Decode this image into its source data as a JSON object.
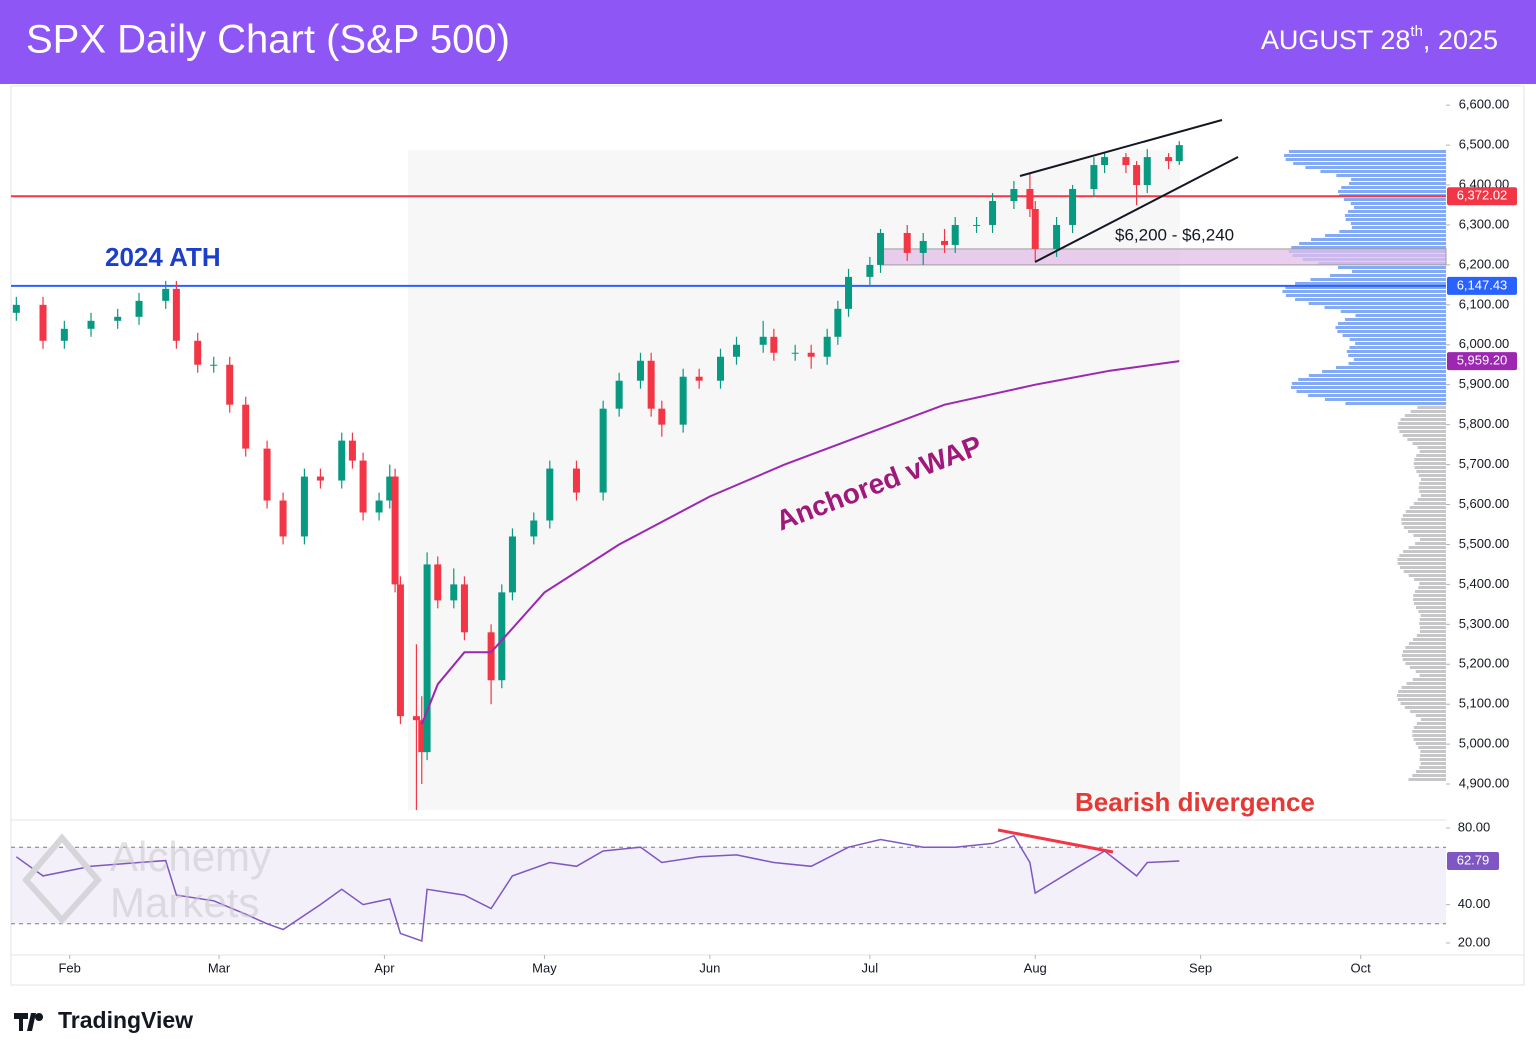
{
  "header": {
    "title": "SPX Daily Chart (S&P 500)",
    "date": {
      "main": "AUGUST 28",
      "sup": "th",
      "tail": ", 2025"
    }
  },
  "watermark": [
    "Alchemy",
    "Markets"
  ],
  "footer": {
    "brand": "TradingView"
  },
  "chart_data": {
    "type": "candlestick",
    "xlim": [
      21,
      290
    ],
    "xticks": [
      {
        "value": 32,
        "label": "Feb"
      },
      {
        "value": 60,
        "label": "Mar"
      },
      {
        "value": 91,
        "label": "Apr"
      },
      {
        "value": 121,
        "label": "May"
      },
      {
        "value": 152,
        "label": "Jun"
      },
      {
        "value": 182,
        "label": "Jul"
      },
      {
        "value": 213,
        "label": "Aug"
      },
      {
        "value": 244,
        "label": "Sep"
      },
      {
        "value": 274,
        "label": "Oct"
      }
    ],
    "ylim": [
      4810,
      6648
    ],
    "yticks": [
      {
        "value": 4900,
        "label": "4,900.00"
      },
      {
        "value": 5000,
        "label": "5,000.00"
      },
      {
        "value": 5100,
        "label": "5,100.00"
      },
      {
        "value": 5200,
        "label": "5,200.00"
      },
      {
        "value": 5300,
        "label": "5,300.00"
      },
      {
        "value": 5400,
        "label": "5,400.00"
      },
      {
        "value": 5500,
        "label": "5,500.00"
      },
      {
        "value": 5600,
        "label": "5,600.00"
      },
      {
        "value": 5700,
        "label": "5,700.00"
      },
      {
        "value": 5800,
        "label": "5,800.00"
      },
      {
        "value": 5900,
        "label": "5,900.00"
      },
      {
        "value": 6000,
        "label": "6,000.00"
      },
      {
        "value": 6100,
        "label": "6,100.00"
      },
      {
        "value": 6200,
        "label": "6,200.00"
      },
      {
        "value": 6300,
        "label": "6,300.00"
      },
      {
        "value": 6400,
        "label": "6,400.00"
      },
      {
        "value": 6500,
        "label": "6,500.00"
      },
      {
        "value": 6600,
        "label": "6,600.00"
      }
    ],
    "up_color": "#089981",
    "down_color": "#f23645",
    "candles": {
      "x": [
        22,
        27,
        31,
        36,
        41,
        45,
        50,
        52,
        56,
        59,
        62,
        65,
        69,
        72,
        76,
        79,
        83,
        85,
        87,
        90,
        92,
        93,
        94,
        97,
        98,
        99,
        101,
        104,
        106,
        111,
        113,
        115,
        119,
        122,
        127,
        132,
        135,
        139,
        141,
        143,
        147,
        150,
        154,
        157,
        162,
        164,
        168,
        171,
        174,
        176,
        178,
        182,
        184,
        189,
        192,
        196,
        198,
        202,
        205,
        209,
        212,
        213,
        217,
        220,
        224,
        226,
        230,
        232,
        234,
        238,
        240
      ],
      "open": [
        6080,
        6100,
        6010,
        6040,
        6060,
        6070,
        6110,
        6140,
        6010,
        5950,
        5950,
        5850,
        5740,
        5610,
        5520,
        5670,
        5660,
        5760,
        5710,
        5580,
        5610,
        5670,
        5400,
        5070,
        5060,
        4980,
        5450,
        5360,
        5400,
        5280,
        5160,
        5380,
        5520,
        5560,
        5690,
        5630,
        5840,
        5910,
        5960,
        5840,
        5800,
        5920,
        5910,
        5970,
        6000,
        6020,
        5980,
        5980,
        5970,
        6020,
        6090,
        6170,
        6200,
        6280,
        6230,
        6260,
        6250,
        6300,
        6300,
        6360,
        6390,
        6340,
        6240,
        6300,
        6390,
        6450,
        6470,
        6450,
        6400,
        6470,
        6460
      ],
      "high": [
        6120,
        6120,
        6060,
        6080,
        6090,
        6130,
        6160,
        6160,
        6030,
        5970,
        5970,
        5870,
        5760,
        5630,
        5690,
        5690,
        5780,
        5780,
        5730,
        5630,
        5700,
        5690,
        5420,
        5250,
        5120,
        5480,
        5470,
        5440,
        5420,
        5300,
        5400,
        5540,
        5580,
        5710,
        5710,
        5860,
        5930,
        5980,
        5980,
        5860,
        5940,
        5940,
        5990,
        6020,
        6060,
        6040,
        6000,
        6000,
        6040,
        6110,
        6190,
        6220,
        6290,
        6300,
        6280,
        6290,
        6320,
        6320,
        6380,
        6410,
        6430,
        6360,
        6320,
        6400,
        6470,
        6480,
        6480,
        6460,
        6490,
        6480,
        6510
      ],
      "low": [
        6060,
        5990,
        5990,
        6020,
        6040,
        6050,
        6090,
        5990,
        5930,
        5930,
        5830,
        5720,
        5590,
        5500,
        5500,
        5640,
        5640,
        5690,
        5560,
        5560,
        5590,
        5380,
        5050,
        4835,
        4900,
        4960,
        5340,
        5340,
        5260,
        5100,
        5140,
        5360,
        5500,
        5540,
        5610,
        5610,
        5820,
        5890,
        5820,
        5770,
        5780,
        5890,
        5890,
        5950,
        5980,
        5960,
        5960,
        5940,
        5950,
        6000,
        6070,
        6150,
        6180,
        6210,
        6200,
        6230,
        6230,
        6280,
        6280,
        6340,
        6320,
        6210,
        6220,
        6280,
        6370,
        6430,
        6430,
        6350,
        6380,
        6440,
        6450
      ],
      "close": [
        6100,
        6010,
        6040,
        6060,
        6070,
        6110,
        6140,
        6010,
        5950,
        5950,
        5850,
        5740,
        5610,
        5520,
        5670,
        5660,
        5760,
        5710,
        5580,
        5610,
        5670,
        5400,
        5070,
        5060,
        4980,
        5450,
        5360,
        5400,
        5280,
        5160,
        5380,
        5520,
        5560,
        5690,
        5630,
        5840,
        5910,
        5960,
        5840,
        5800,
        5920,
        5910,
        5970,
        6000,
        6020,
        5980,
        5980,
        5970,
        6020,
        6090,
        6170,
        6200,
        6280,
        6230,
        6260,
        6250,
        6300,
        6300,
        6360,
        6390,
        6340,
        6240,
        6300,
        6390,
        6450,
        6470,
        6450,
        6400,
        6470,
        6460,
        6500
      ]
    },
    "vwap": {
      "name": "Anchored vWAP",
      "color": "#9c27b0",
      "x": [
        98,
        101,
        106,
        111,
        121,
        135,
        152,
        166,
        182,
        196,
        213,
        227,
        240
      ],
      "values": [
        5050,
        5150,
        5230,
        5230,
        5380,
        5500,
        5620,
        5700,
        5780,
        5850,
        5900,
        5935,
        5959.2
      ],
      "value_label": "5,959.20"
    },
    "levels": [
      {
        "value": 6372.02,
        "label": "6,372.02",
        "color": "#f23645"
      },
      {
        "value": 6147.43,
        "label": "6,147.43",
        "color": "#2962ff"
      }
    ],
    "zone": {
      "low": 6200,
      "high": 6240,
      "label": "$6,200 - $6,240",
      "color": "#e1bee7"
    },
    "annotations": {
      "ath": "2024 ATH",
      "divergence": "Bearish divergence"
    },
    "rsi": {
      "color": "#7e57c2",
      "ylim": [
        13.7,
        84.2
      ],
      "yticks": [
        {
          "value": 20,
          "label": "20.00"
        },
        {
          "value": 40,
          "label": "40.00"
        },
        {
          "value": 80,
          "label": "80.00"
        }
      ],
      "bands": [
        30,
        70
      ],
      "x": [
        22,
        27,
        36,
        45,
        50,
        52,
        59,
        65,
        69,
        72,
        79,
        83,
        87,
        92,
        94,
        98,
        99,
        106,
        111,
        115,
        122,
        127,
        132,
        139,
        143,
        150,
        157,
        164,
        171,
        178,
        184,
        192,
        198,
        205,
        209,
        212,
        213,
        220,
        226,
        232,
        234,
        240
      ],
      "values": [
        65,
        55,
        60,
        62,
        63,
        45,
        42,
        35,
        30,
        27,
        40,
        48,
        40,
        43,
        25,
        21,
        48,
        45,
        38,
        55,
        62,
        60,
        68,
        70,
        62,
        65,
        66,
        62,
        60,
        70,
        74,
        70,
        70,
        72,
        76,
        62,
        46,
        58,
        68,
        55,
        62,
        62.79
      ]
    }
  }
}
